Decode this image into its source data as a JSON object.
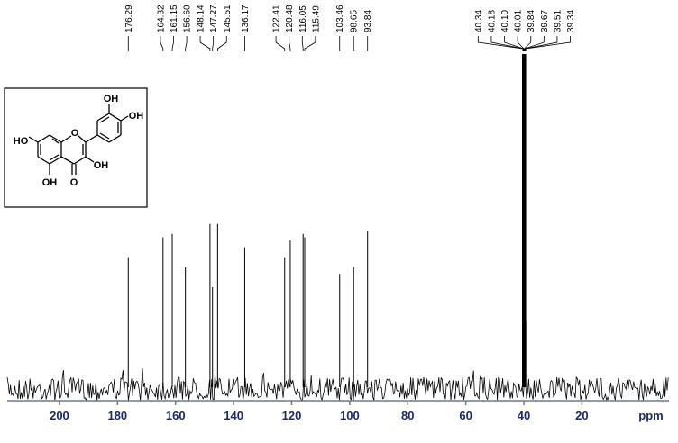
{
  "chart_data": {
    "type": "nmr-spectrum",
    "x_label": "ppm",
    "xlim": [
      218,
      -10
    ],
    "xticks": [
      200,
      180,
      160,
      140,
      120,
      100,
      80,
      60,
      40,
      20
    ],
    "ylim": [
      0,
      100
    ],
    "color": "#000000",
    "axis_color": "#6a7a9a",
    "peaks": {
      "x": [
        176.29,
        164.32,
        161.15,
        156.6,
        148.14,
        147.27,
        145.51,
        136.17,
        122.41,
        120.48,
        116.05,
        115.49,
        103.46,
        98.65,
        93.84,
        40.34,
        40.18,
        40.1,
        40.01,
        39.84,
        39.67,
        39.51,
        39.34
      ],
      "labels": [
        "176.29",
        "164.32",
        "161.15",
        "156.60",
        "148.14",
        "147.27",
        "145.51",
        "136.17",
        "122.41",
        "120.48",
        "116.05",
        "115.49",
        "103.46",
        "98.65",
        "93.84",
        "40.34",
        "40.18",
        "40.10",
        "40.01",
        "39.84",
        "39.67",
        "39.51",
        "39.34"
      ],
      "values": [
        39,
        45,
        46,
        36,
        49,
        30,
        49,
        42,
        39,
        44,
        46,
        45,
        34,
        36,
        47,
        20,
        55,
        80,
        100,
        100,
        80,
        55,
        20
      ]
    },
    "structure_labels": [
      "OH",
      "OH",
      "HO",
      "O",
      "OH",
      "OH",
      "O"
    ]
  }
}
